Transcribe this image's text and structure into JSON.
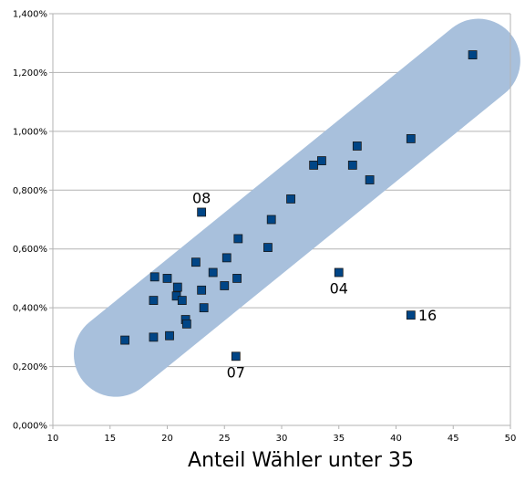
{
  "chart_data": {
    "type": "scatter",
    "title": "",
    "xlabel": "Anteil Wähler unter 35",
    "ylabel": "",
    "xlim": [
      10,
      50
    ],
    "ylim": [
      0,
      1.4
    ],
    "x_ticks": [
      10,
      15,
      20,
      25,
      30,
      35,
      40,
      45,
      50
    ],
    "x_tick_labels": [
      "10",
      "15",
      "20",
      "25",
      "30",
      "35",
      "40",
      "45",
      "50"
    ],
    "y_ticks": [
      0,
      0.2,
      0.4,
      0.6,
      0.8,
      1.0,
      1.2,
      1.4
    ],
    "y_tick_labels": [
      "0,000%",
      "0,200%",
      "0,400%",
      "0,600%",
      "0,800%",
      "1,000%",
      "1,200%",
      "1,400%"
    ],
    "grid": "horizontal",
    "legend": "none",
    "colors": {
      "marker_fill": "#004586",
      "marker_stroke": "#1a1a1a",
      "band": "#a8c0dc",
      "grid": "#b3b3b3",
      "axis": "#b3b3b3"
    },
    "band": {
      "x": [
        15.5,
        47.2
      ],
      "y": [
        0.24,
        1.24
      ]
    },
    "points": [
      {
        "x": 16.3,
        "y": 0.29
      },
      {
        "x": 18.8,
        "y": 0.3
      },
      {
        "x": 18.8,
        "y": 0.425
      },
      {
        "x": 18.9,
        "y": 0.505
      },
      {
        "x": 20.0,
        "y": 0.5
      },
      {
        "x": 20.2,
        "y": 0.305
      },
      {
        "x": 20.8,
        "y": 0.44
      },
      {
        "x": 20.9,
        "y": 0.47
      },
      {
        "x": 21.3,
        "y": 0.425
      },
      {
        "x": 21.6,
        "y": 0.36
      },
      {
        "x": 21.7,
        "y": 0.345
      },
      {
        "x": 22.5,
        "y": 0.555
      },
      {
        "x": 23.0,
        "y": 0.46
      },
      {
        "x": 23.0,
        "y": 0.725,
        "label": "08"
      },
      {
        "x": 23.2,
        "y": 0.4
      },
      {
        "x": 24.0,
        "y": 0.52
      },
      {
        "x": 25.0,
        "y": 0.475
      },
      {
        "x": 25.2,
        "y": 0.57
      },
      {
        "x": 26.0,
        "y": 0.235,
        "label": "07"
      },
      {
        "x": 26.1,
        "y": 0.5
      },
      {
        "x": 26.2,
        "y": 0.635
      },
      {
        "x": 28.8,
        "y": 0.605
      },
      {
        "x": 29.1,
        "y": 0.7
      },
      {
        "x": 30.8,
        "y": 0.77
      },
      {
        "x": 32.8,
        "y": 0.885
      },
      {
        "x": 33.5,
        "y": 0.9
      },
      {
        "x": 35.0,
        "y": 0.52,
        "label": "04"
      },
      {
        "x": 36.2,
        "y": 0.885
      },
      {
        "x": 36.6,
        "y": 0.95
      },
      {
        "x": 37.7,
        "y": 0.835
      },
      {
        "x": 41.3,
        "y": 0.375,
        "label": "16"
      },
      {
        "x": 41.3,
        "y": 0.975
      },
      {
        "x": 46.7,
        "y": 1.26
      }
    ]
  }
}
